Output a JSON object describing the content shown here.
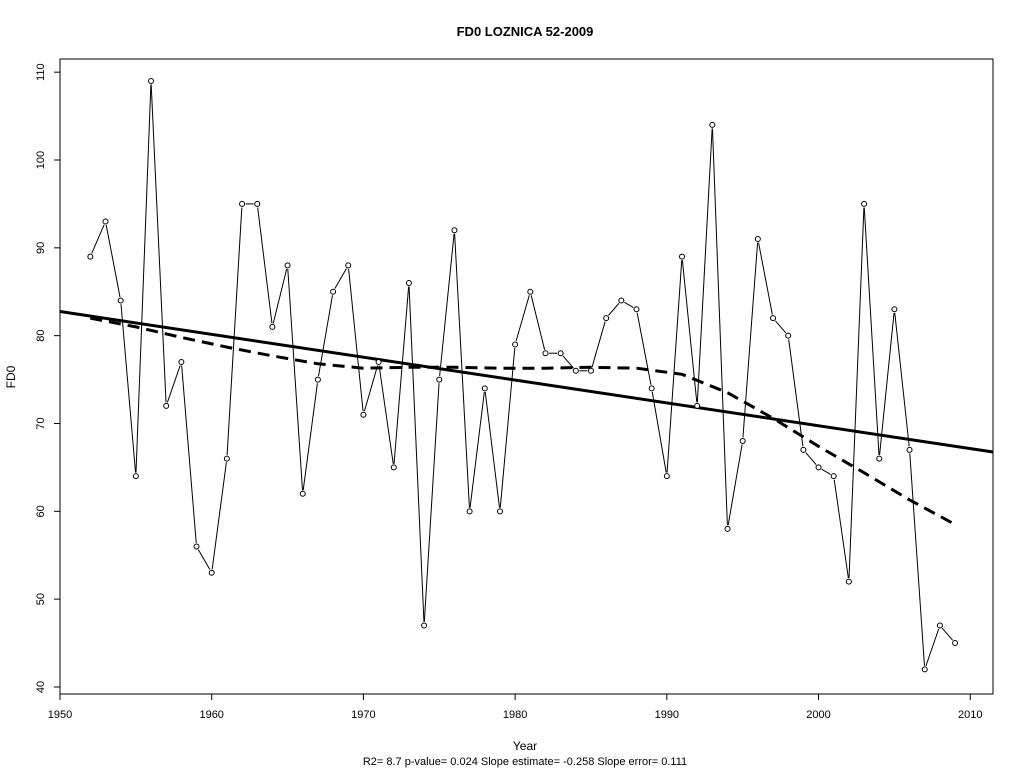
{
  "chart_data": {
    "type": "line",
    "title": "FD0    LOZNICA 52-2009",
    "xlabel": "Year",
    "ylabel": "FD0",
    "stats_text": "R2= 8.7  p-value= 0.024  Slope estimate= -0.258  Slope error= 0.111",
    "xlim": [
      1950,
      2011.5
    ],
    "ylim": [
      39.2,
      111.5
    ],
    "x_ticks": [
      1950,
      1960,
      1970,
      1980,
      1990,
      2000,
      2010
    ],
    "y_ticks": [
      40,
      50,
      60,
      70,
      80,
      90,
      100,
      110
    ],
    "grid": false,
    "series": [
      {
        "style": "line-with-open-circles",
        "x": [
          1952,
          1953,
          1954,
          1955,
          1956,
          1957,
          1958,
          1959,
          1960,
          1961,
          1962,
          1963,
          1964,
          1965,
          1966,
          1967,
          1968,
          1969,
          1970,
          1971,
          1972,
          1973,
          1974,
          1975,
          1976,
          1977,
          1978,
          1979,
          1980,
          1981,
          1982,
          1983,
          1984,
          1985,
          1986,
          1987,
          1988,
          1989,
          1990,
          1991,
          1992,
          1993,
          1994,
          1995,
          1996,
          1997,
          1998,
          1999,
          2000,
          2001,
          2002,
          2003,
          2004,
          2005,
          2006,
          2007,
          2008,
          2009
        ],
        "y": [
          89,
          93,
          84,
          64,
          109,
          72,
          77,
          56,
          53,
          66,
          95,
          95,
          81,
          88,
          62,
          75,
          85,
          88,
          71,
          77,
          65,
          86,
          47,
          75,
          92,
          60,
          74,
          60,
          79,
          85,
          78,
          78,
          76,
          76,
          82,
          84,
          83,
          74,
          64,
          89,
          72,
          104,
          58,
          68,
          91,
          82,
          80,
          67,
          65,
          64,
          52,
          95,
          66,
          83,
          67,
          42,
          47,
          45
        ]
      },
      {
        "style": "solid-thick",
        "x": [
          1950,
          2011.5
        ],
        "y": [
          82.75,
          66.75
        ]
      },
      {
        "style": "dashed-thick",
        "x": [
          1952,
          1955,
          1958,
          1961,
          1964,
          1967,
          1970,
          1973,
          1976,
          1979,
          1982,
          1985,
          1988,
          1991,
          1994,
          1997,
          2000,
          2003,
          2006,
          2009
        ],
        "y": [
          82.0,
          81.0,
          79.8,
          78.7,
          77.7,
          76.8,
          76.3,
          76.4,
          76.4,
          76.3,
          76.3,
          76.4,
          76.3,
          75.6,
          73.5,
          70.6,
          67.4,
          64.4,
          61.3,
          58.5
        ]
      }
    ]
  }
}
